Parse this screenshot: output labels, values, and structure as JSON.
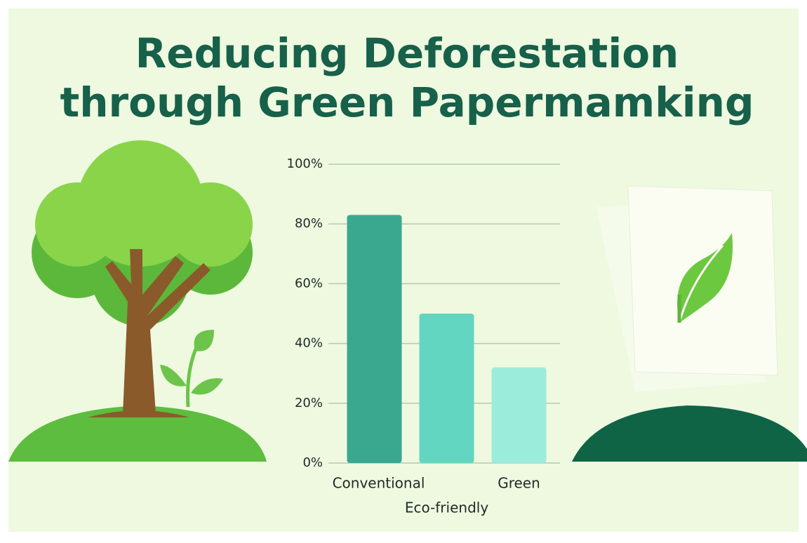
{
  "chart_data": {
    "type": "bar",
    "title_lines": [
      "Reducing Deforestation",
      "through Green Papermamking"
    ],
    "categories": [
      "Conventional",
      "Eco-friendly",
      "Green"
    ],
    "values": [
      83,
      50,
      32
    ],
    "colors": [
      "#3aa88f",
      "#62d6c0",
      "#9cecdc"
    ],
    "ylim": [
      0,
      100
    ],
    "yticks": [
      {
        "value": 0,
        "label": "0%"
      },
      {
        "value": 20,
        "label": "20%"
      },
      {
        "value": 40,
        "label": "40%"
      },
      {
        "value": 60,
        "label": "60%"
      },
      {
        "value": 80,
        "label": "80%"
      },
      {
        "value": 100,
        "label": "100%"
      }
    ],
    "grid": true
  }
}
